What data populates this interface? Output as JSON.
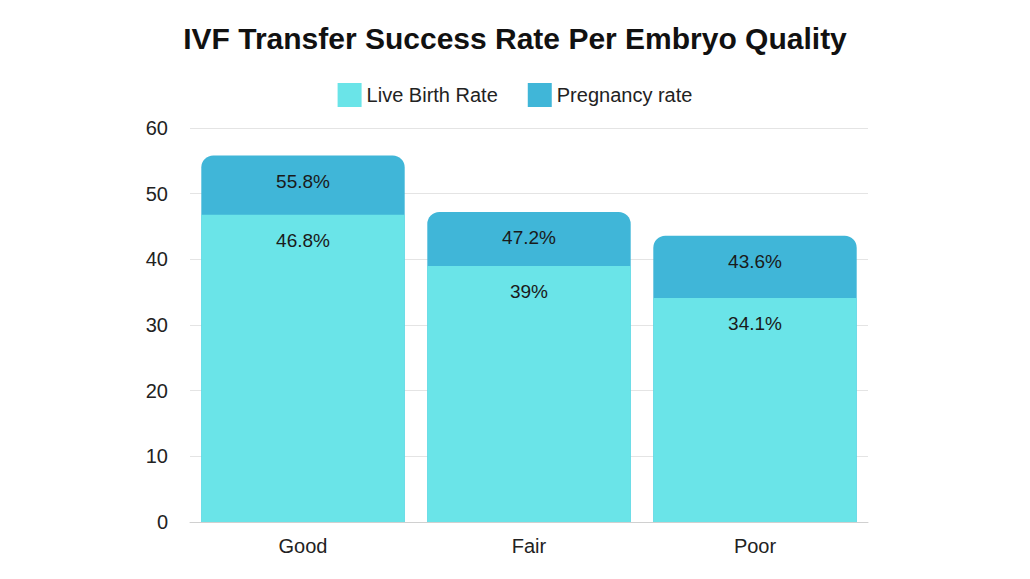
{
  "chart_data": {
    "type": "bar",
    "title": "IVF Transfer Success Rate Per Embryo Quality",
    "categories": [
      "Good",
      "Fair",
      "Poor"
    ],
    "series": [
      {
        "name": "Live Birth Rate",
        "color": "#6ae4e8",
        "values": [
          46.8,
          39,
          34.1
        ],
        "value_labels": [
          "46.8%",
          "39%",
          "34.1%"
        ]
      },
      {
        "name": "Pregnancy rate",
        "color": "#40b6d8",
        "values": [
          55.8,
          47.2,
          43.6
        ],
        "value_labels": [
          "55.8%",
          "47.2%",
          "43.6%"
        ]
      }
    ],
    "ylim": [
      0,
      60
    ],
    "yticks": [
      0,
      10,
      20,
      30,
      40,
      50,
      60
    ],
    "grid": true,
    "legend": "top",
    "stacked": false,
    "data_labels": true
  }
}
